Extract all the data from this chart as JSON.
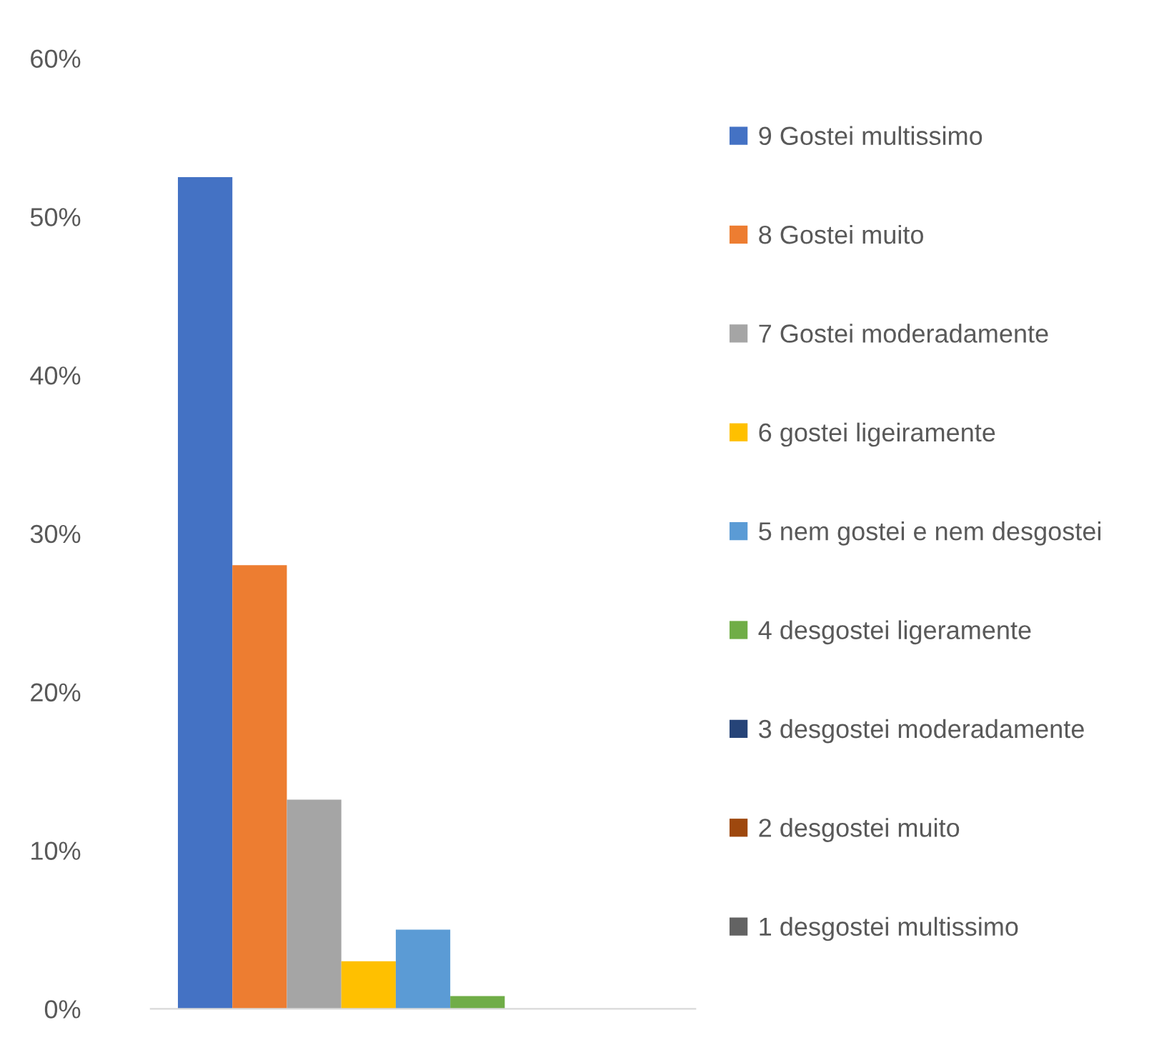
{
  "chart_data": {
    "type": "bar",
    "categories": [
      null
    ],
    "series": [
      {
        "name": "9 Gostei multissimo",
        "color": "#4472c4",
        "values": [
          52.5
        ]
      },
      {
        "name": "8 Gostei muito",
        "color": "#ed7d31",
        "values": [
          28
        ]
      },
      {
        "name": "7 Gostei moderadamente",
        "color": "#a5a5a5",
        "values": [
          13.2
        ]
      },
      {
        "name": "6 gostei ligeiramente",
        "color": "#ffc000",
        "values": [
          3
        ]
      },
      {
        "name": "5 nem gostei e nem desgostei",
        "color": "#5b9bd5",
        "values": [
          5
        ]
      },
      {
        "name": "4 desgostei ligeramente",
        "color": "#70ad47",
        "values": [
          0.8
        ]
      },
      {
        "name": "3 desgostei moderadamente",
        "color": "#264478",
        "values": [
          0
        ]
      },
      {
        "name": "2 desgostei muito",
        "color": "#9e480e",
        "values": [
          0
        ]
      },
      {
        "name": "1 desgostei multissimo",
        "color": "#636363",
        "values": [
          0
        ]
      }
    ],
    "ylim": [
      0,
      60
    ],
    "yticks": [
      {
        "value": 0,
        "label": "0%"
      },
      {
        "value": 10,
        "label": "10%"
      },
      {
        "value": 20,
        "label": "20%"
      },
      {
        "value": 30,
        "label": "30%"
      },
      {
        "value": 40,
        "label": "40%"
      },
      {
        "value": 50,
        "label": "50%"
      },
      {
        "value": 60,
        "label": "60%"
      }
    ],
    "grid": false,
    "legend": "right"
  }
}
